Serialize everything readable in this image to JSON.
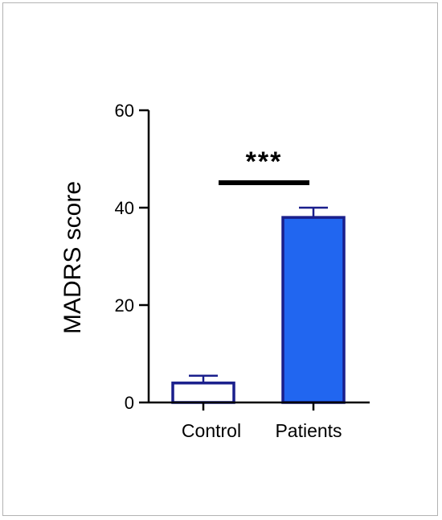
{
  "chart_data": {
    "type": "bar",
    "categories": [
      "Control",
      "Patients"
    ],
    "values": [
      4,
      38
    ],
    "errors": [
      1.5,
      2
    ],
    "ylabel": "MADRS score",
    "ylim": [
      0,
      60
    ],
    "yticks": [
      0,
      20,
      40,
      60
    ],
    "grid": false,
    "bar_styles": [
      {
        "fill": "#ffffff",
        "stroke": "#1a1f8c"
      },
      {
        "fill": "#2166f0",
        "stroke": "#1a1f8c"
      }
    ],
    "significance": {
      "between": [
        0,
        1
      ],
      "label": "***"
    }
  }
}
